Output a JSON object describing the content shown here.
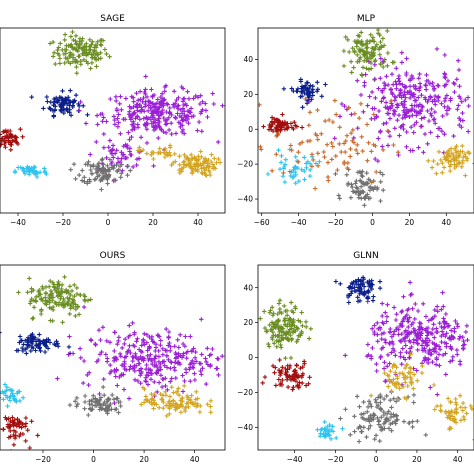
{
  "chart_data": [
    {
      "type": "scatter",
      "title": "SAGE",
      "xlabel": "",
      "ylabel": "",
      "xlim": [
        -48,
        52
      ],
      "ylim": [
        -50,
        65
      ],
      "xticks": [
        "−40",
        "−20",
        "0",
        "20",
        "40"
      ],
      "xtick_values": [
        -40,
        -20,
        0,
        20,
        40
      ],
      "yticks": [],
      "ytick_values": [],
      "clusters": [
        {
          "color": "#6b8e23",
          "cx": -12,
          "cy": 50,
          "sx": 6,
          "sy": 5,
          "n": 130
        },
        {
          "color": "#0b1f8a",
          "cx": -20,
          "cy": 18,
          "sx": 4,
          "sy": 3.5,
          "n": 80
        },
        {
          "color": "#9b1fd6",
          "cx": 22,
          "cy": 12,
          "sx": 12,
          "sy": 7,
          "n": 280
        },
        {
          "color": "#9b1fd6",
          "cx": 6,
          "cy": -14,
          "sx": 6,
          "sy": 4,
          "n": 50
        },
        {
          "color": "#a30d0d",
          "cx": -45,
          "cy": -4,
          "sx": 3,
          "sy": 3,
          "n": 50
        },
        {
          "color": "#2ec4f0",
          "cx": -34,
          "cy": -24,
          "sx": 3.5,
          "sy": 2,
          "n": 45
        },
        {
          "color": "#707070",
          "cx": -2,
          "cy": -24,
          "sx": 5,
          "sy": 4,
          "n": 90
        },
        {
          "color": "#d4a520",
          "cx": 38,
          "cy": -20,
          "sx": 5,
          "sy": 3.5,
          "n": 95
        },
        {
          "color": "#d4a520",
          "cx": 22,
          "cy": -12,
          "sx": 4,
          "sy": 2,
          "n": 25
        }
      ]
    },
    {
      "type": "scatter",
      "title": "MLP",
      "xlabel": "",
      "ylabel": "",
      "xlim": [
        -62,
        55
      ],
      "ylim": [
        -48,
        58
      ],
      "xticks": [
        "−60",
        "−40",
        "−20",
        "0",
        "20",
        "40"
      ],
      "xtick_values": [
        -60,
        -40,
        -20,
        0,
        20,
        40
      ],
      "yticks": [
        "−40",
        "−20",
        "0",
        "20",
        "40"
      ],
      "ytick_values": [
        -40,
        -20,
        0,
        20,
        40
      ],
      "clusters": [
        {
          "color": "#6b8e23",
          "cx": -2,
          "cy": 44,
          "sx": 6,
          "sy": 6,
          "n": 110
        },
        {
          "color": "#0b1f8a",
          "cx": -36,
          "cy": 22,
          "sx": 4,
          "sy": 3,
          "n": 55
        },
        {
          "color": "#9b1fd6",
          "cx": 22,
          "cy": 14,
          "sx": 15,
          "sy": 11,
          "n": 300
        },
        {
          "color": "#a30d0d",
          "cx": -50,
          "cy": 2,
          "sx": 4,
          "sy": 2.5,
          "n": 60
        },
        {
          "color": "#2ec4f0",
          "cx": -42,
          "cy": -22,
          "sx": 6,
          "sy": 4,
          "n": 40
        },
        {
          "color": "#707070",
          "cx": -5,
          "cy": -32,
          "sx": 5,
          "sy": 5,
          "n": 70
        },
        {
          "color": "#d4a520",
          "cx": 42,
          "cy": -18,
          "sx": 5,
          "sy": 4,
          "n": 70
        },
        {
          "color": "#cc6a2a",
          "cx": -22,
          "cy": -8,
          "sx": 16,
          "sy": 12,
          "n": 90
        }
      ]
    },
    {
      "type": "scatter",
      "title": "OURS",
      "xlabel": "",
      "ylabel": "",
      "xlim": [
        -37,
        52
      ],
      "ylim": [
        -52,
        62
      ],
      "xticks": [
        "−20",
        "0",
        "20",
        "40"
      ],
      "xtick_values": [
        -20,
        0,
        20,
        40
      ],
      "yticks": [],
      "ytick_values": [],
      "clusters": [
        {
          "color": "#6b8e23",
          "cx": -14,
          "cy": 42,
          "sx": 6,
          "sy": 6,
          "n": 140
        },
        {
          "color": "#0b1f8a",
          "cx": -22,
          "cy": 14,
          "sx": 4.5,
          "sy": 3,
          "n": 80
        },
        {
          "color": "#9b1fd6",
          "cx": 22,
          "cy": 4,
          "sx": 13,
          "sy": 9,
          "n": 300
        },
        {
          "color": "#a30d0d",
          "cx": -32,
          "cy": -38,
          "sx": 3,
          "sy": 5,
          "n": 55
        },
        {
          "color": "#2ec4f0",
          "cx": -33,
          "cy": -18,
          "sx": 3,
          "sy": 3,
          "n": 35
        },
        {
          "color": "#707070",
          "cx": 2,
          "cy": -24,
          "sx": 5,
          "sy": 3,
          "n": 70
        },
        {
          "color": "#d4a520",
          "cx": 32,
          "cy": -22,
          "sx": 6,
          "sy": 4,
          "n": 100
        }
      ]
    },
    {
      "type": "scatter",
      "title": "GLNN",
      "xlabel": "",
      "ylabel": "",
      "xlim": [
        -58,
        48
      ],
      "ylim": [
        -53,
        53
      ],
      "xticks": [
        "−40",
        "−20",
        "0",
        "20",
        "40"
      ],
      "xtick_values": [
        -40,
        -20,
        0,
        20,
        40
      ],
      "yticks": [
        "−40",
        "−20",
        "0",
        "20",
        "40"
      ],
      "ytick_values": [
        -40,
        -20,
        0,
        20,
        40
      ],
      "clusters": [
        {
          "color": "#6b8e23",
          "cx": -45,
          "cy": 18,
          "sx": 5,
          "sy": 6,
          "n": 140
        },
        {
          "color": "#0b1f8a",
          "cx": -8,
          "cy": 40,
          "sx": 4,
          "sy": 4,
          "n": 70
        },
        {
          "color": "#9b1fd6",
          "cx": 22,
          "cy": 10,
          "sx": 13,
          "sy": 10,
          "n": 300
        },
        {
          "color": "#a30d0d",
          "cx": -42,
          "cy": -10,
          "sx": 5,
          "sy": 4,
          "n": 70
        },
        {
          "color": "#2ec4f0",
          "cx": -24,
          "cy": -42,
          "sx": 2.5,
          "sy": 2,
          "n": 30
        },
        {
          "color": "#707070",
          "cx": 2,
          "cy": -34,
          "sx": 7,
          "sy": 6,
          "n": 110
        },
        {
          "color": "#d4a520",
          "cx": 12,
          "cy": -12,
          "sx": 6,
          "sy": 5,
          "n": 60
        },
        {
          "color": "#d4a520",
          "cx": 38,
          "cy": -32,
          "sx": 4,
          "sy": 5,
          "n": 50
        }
      ]
    }
  ]
}
